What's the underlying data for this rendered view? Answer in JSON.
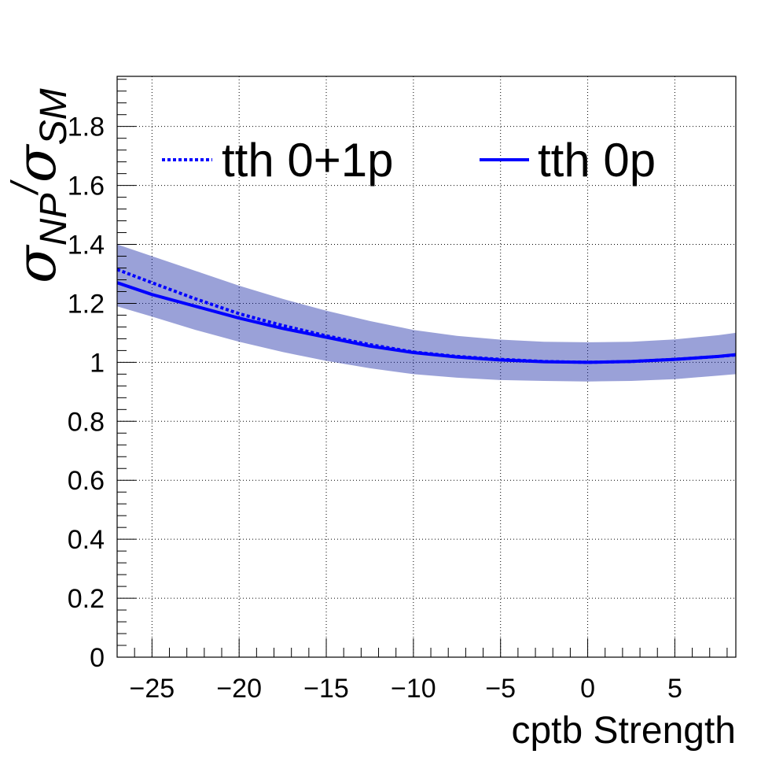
{
  "chart_data": {
    "type": "line",
    "xlabel": "cptb Strength",
    "ylabel_symbol": "σ",
    "ylabel_num_sub": "NP",
    "ylabel_den_sub": "SM",
    "ylabel_separator": "/",
    "xlim": [
      -27,
      8.5
    ],
    "ylim": [
      0,
      1.97
    ],
    "x_ticks": [
      -25,
      -20,
      -15,
      -10,
      -5,
      0,
      5
    ],
    "x_tick_labels": [
      "−25",
      "−20",
      "−15",
      "−10",
      "−5",
      "0",
      "5"
    ],
    "y_ticks": [
      0,
      0.2,
      0.4,
      0.6,
      0.8,
      1,
      1.2,
      1.4,
      1.6,
      1.8
    ],
    "y_tick_labels": [
      "0",
      "0.2",
      "0.4",
      "0.6",
      "0.8",
      "1",
      "1.2",
      "1.4",
      "1.6",
      "1.8"
    ],
    "grid": true,
    "legend_position": "top",
    "series": [
      {
        "name": "tth 0+1p",
        "style": "dotted",
        "color": "#0000ff",
        "x": [
          -27,
          -25,
          -22.5,
          -20,
          -17.5,
          -15,
          -12.5,
          -10,
          -7.5,
          -5,
          -2.5,
          0,
          2.5,
          5,
          7.5,
          8.5
        ],
        "y": [
          1.315,
          1.27,
          1.215,
          1.165,
          1.125,
          1.09,
          1.06,
          1.035,
          1.02,
          1.01,
          1.003,
          1.0,
          1.003,
          1.01,
          1.02,
          1.025
        ]
      },
      {
        "name": "tth 0p",
        "style": "solid",
        "color": "#0000ff",
        "x": [
          -27,
          -25,
          -22.5,
          -20,
          -17.5,
          -15,
          -12.5,
          -10,
          -7.5,
          -5,
          -2.5,
          0,
          2.5,
          5,
          7.5,
          8.5
        ],
        "y": [
          1.27,
          1.23,
          1.19,
          1.15,
          1.115,
          1.085,
          1.055,
          1.033,
          1.018,
          1.008,
          1.002,
          1.0,
          1.003,
          1.01,
          1.02,
          1.026
        ]
      }
    ],
    "uncertainty_band": {
      "color": "#1e2fa8",
      "x": [
        -27,
        -25,
        -22.5,
        -20,
        -17.5,
        -15,
        -12.5,
        -10,
        -7.5,
        -5,
        -2.5,
        0,
        2.5,
        5,
        7.5,
        8.5
      ],
      "upper": [
        1.4,
        1.36,
        1.31,
        1.26,
        1.215,
        1.175,
        1.14,
        1.11,
        1.09,
        1.077,
        1.07,
        1.068,
        1.07,
        1.078,
        1.092,
        1.1
      ],
      "lower": [
        1.19,
        1.155,
        1.11,
        1.07,
        1.035,
        1.005,
        0.98,
        0.96,
        0.948,
        0.94,
        0.937,
        0.935,
        0.937,
        0.943,
        0.955,
        0.96
      ]
    }
  }
}
